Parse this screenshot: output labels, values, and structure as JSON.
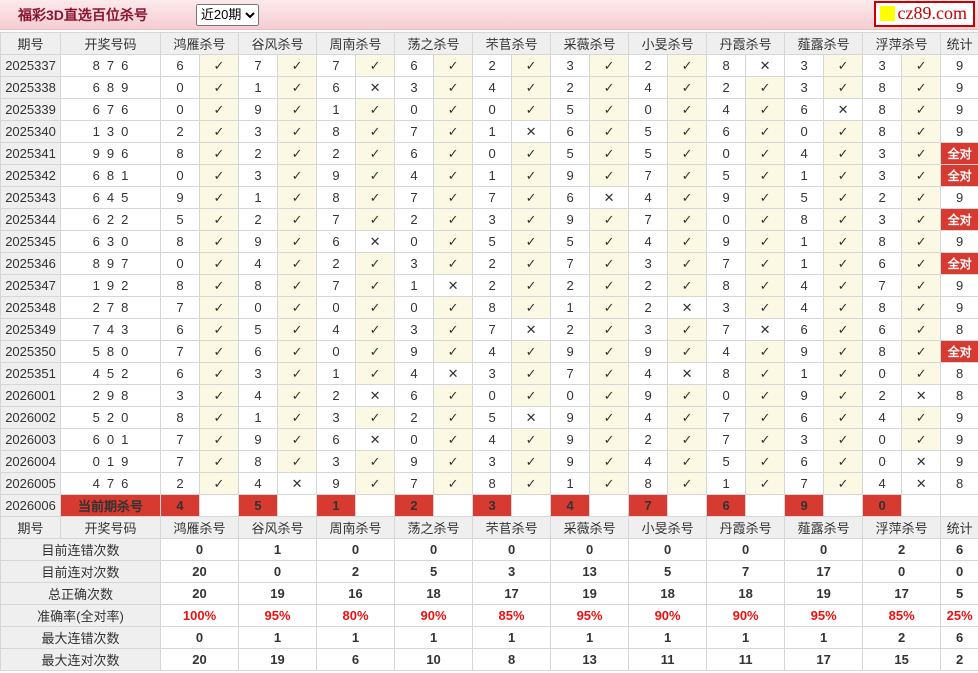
{
  "title": "福彩3D直选百位杀号",
  "range_select": {
    "value": "近20期"
  },
  "logo": {
    "text": "cz89.com"
  },
  "icons": {
    "check": "✓",
    "cross": "✕"
  },
  "colors": {
    "accent_red": "#d63a30",
    "check_red": "#cd4a42",
    "cross_gray": "#a8a8a8",
    "summary_blue": "#1414cc",
    "summary_red": "#ee1010",
    "check_cell_bg": "#fbf9e4",
    "topbar_pink": "#f4cdd2"
  },
  "table": {
    "headers": [
      "期号",
      "开奖号码",
      "鸿雁杀号",
      "谷风杀号",
      "周南杀号",
      "荡之杀号",
      "芣苢杀号",
      "采薇杀号",
      "小旻杀号",
      "丹霞杀号",
      "薤露杀号",
      "浮萍杀号",
      "统计"
    ],
    "all_correct_label": "全对",
    "rows": [
      {
        "period": "2025337",
        "draw": "876",
        "kills": [
          [
            6,
            1
          ],
          [
            7,
            1
          ],
          [
            7,
            1
          ],
          [
            6,
            1
          ],
          [
            2,
            1
          ],
          [
            3,
            1
          ],
          [
            2,
            1
          ],
          [
            8,
            0
          ],
          [
            3,
            1
          ],
          [
            3,
            1
          ]
        ],
        "stat": "9"
      },
      {
        "period": "2025338",
        "draw": "689",
        "kills": [
          [
            0,
            1
          ],
          [
            1,
            1
          ],
          [
            6,
            0
          ],
          [
            3,
            1
          ],
          [
            4,
            1
          ],
          [
            2,
            1
          ],
          [
            4,
            1
          ],
          [
            2,
            1
          ],
          [
            3,
            1
          ],
          [
            8,
            1
          ]
        ],
        "stat": "9"
      },
      {
        "period": "2025339",
        "draw": "676",
        "kills": [
          [
            0,
            1
          ],
          [
            9,
            1
          ],
          [
            1,
            1
          ],
          [
            0,
            1
          ],
          [
            0,
            1
          ],
          [
            5,
            1
          ],
          [
            0,
            1
          ],
          [
            4,
            1
          ],
          [
            6,
            0
          ],
          [
            8,
            1
          ]
        ],
        "stat": "9"
      },
      {
        "period": "2025340",
        "draw": "130",
        "kills": [
          [
            2,
            1
          ],
          [
            3,
            1
          ],
          [
            8,
            1
          ],
          [
            7,
            1
          ],
          [
            1,
            0
          ],
          [
            6,
            1
          ],
          [
            5,
            1
          ],
          [
            6,
            1
          ],
          [
            0,
            1
          ],
          [
            8,
            1
          ]
        ],
        "stat": "9"
      },
      {
        "period": "2025341",
        "draw": "996",
        "kills": [
          [
            8,
            1
          ],
          [
            2,
            1
          ],
          [
            2,
            1
          ],
          [
            6,
            1
          ],
          [
            0,
            1
          ],
          [
            5,
            1
          ],
          [
            5,
            1
          ],
          [
            0,
            1
          ],
          [
            4,
            1
          ],
          [
            3,
            1
          ]
        ],
        "stat": "全对"
      },
      {
        "period": "2025342",
        "draw": "681",
        "kills": [
          [
            0,
            1
          ],
          [
            3,
            1
          ],
          [
            9,
            1
          ],
          [
            4,
            1
          ],
          [
            1,
            1
          ],
          [
            9,
            1
          ],
          [
            7,
            1
          ],
          [
            5,
            1
          ],
          [
            1,
            1
          ],
          [
            3,
            1
          ]
        ],
        "stat": "全对"
      },
      {
        "period": "2025343",
        "draw": "645",
        "kills": [
          [
            9,
            1
          ],
          [
            1,
            1
          ],
          [
            8,
            1
          ],
          [
            7,
            1
          ],
          [
            7,
            1
          ],
          [
            6,
            0
          ],
          [
            4,
            1
          ],
          [
            9,
            1
          ],
          [
            5,
            1
          ],
          [
            2,
            1
          ]
        ],
        "stat": "9"
      },
      {
        "period": "2025344",
        "draw": "622",
        "kills": [
          [
            5,
            1
          ],
          [
            2,
            1
          ],
          [
            7,
            1
          ],
          [
            2,
            1
          ],
          [
            3,
            1
          ],
          [
            9,
            1
          ],
          [
            7,
            1
          ],
          [
            0,
            1
          ],
          [
            8,
            1
          ],
          [
            3,
            1
          ]
        ],
        "stat": "全对"
      },
      {
        "period": "2025345",
        "draw": "630",
        "kills": [
          [
            8,
            1
          ],
          [
            9,
            1
          ],
          [
            6,
            0
          ],
          [
            0,
            1
          ],
          [
            5,
            1
          ],
          [
            5,
            1
          ],
          [
            4,
            1
          ],
          [
            9,
            1
          ],
          [
            1,
            1
          ],
          [
            8,
            1
          ]
        ],
        "stat": "9"
      },
      {
        "period": "2025346",
        "draw": "897",
        "kills": [
          [
            0,
            1
          ],
          [
            4,
            1
          ],
          [
            2,
            1
          ],
          [
            3,
            1
          ],
          [
            2,
            1
          ],
          [
            7,
            1
          ],
          [
            3,
            1
          ],
          [
            7,
            1
          ],
          [
            1,
            1
          ],
          [
            6,
            1
          ]
        ],
        "stat": "全对"
      },
      {
        "period": "2025347",
        "draw": "192",
        "kills": [
          [
            8,
            1
          ],
          [
            8,
            1
          ],
          [
            7,
            1
          ],
          [
            1,
            0
          ],
          [
            2,
            1
          ],
          [
            2,
            1
          ],
          [
            2,
            1
          ],
          [
            8,
            1
          ],
          [
            4,
            1
          ],
          [
            7,
            1
          ]
        ],
        "stat": "9"
      },
      {
        "period": "2025348",
        "draw": "278",
        "kills": [
          [
            7,
            1
          ],
          [
            0,
            1
          ],
          [
            0,
            1
          ],
          [
            0,
            1
          ],
          [
            8,
            1
          ],
          [
            1,
            1
          ],
          [
            2,
            0
          ],
          [
            3,
            1
          ],
          [
            4,
            1
          ],
          [
            8,
            1
          ]
        ],
        "stat": "9"
      },
      {
        "period": "2025349",
        "draw": "743",
        "kills": [
          [
            6,
            1
          ],
          [
            5,
            1
          ],
          [
            4,
            1
          ],
          [
            3,
            1
          ],
          [
            7,
            0
          ],
          [
            2,
            1
          ],
          [
            3,
            1
          ],
          [
            7,
            0
          ],
          [
            6,
            1
          ],
          [
            6,
            1
          ]
        ],
        "stat": "8"
      },
      {
        "period": "2025350",
        "draw": "580",
        "kills": [
          [
            7,
            1
          ],
          [
            6,
            1
          ],
          [
            0,
            1
          ],
          [
            9,
            1
          ],
          [
            4,
            1
          ],
          [
            9,
            1
          ],
          [
            9,
            1
          ],
          [
            4,
            1
          ],
          [
            9,
            1
          ],
          [
            8,
            1
          ]
        ],
        "stat": "全对"
      },
      {
        "period": "2025351",
        "draw": "452",
        "kills": [
          [
            6,
            1
          ],
          [
            3,
            1
          ],
          [
            1,
            1
          ],
          [
            4,
            0
          ],
          [
            3,
            1
          ],
          [
            7,
            1
          ],
          [
            4,
            0
          ],
          [
            8,
            1
          ],
          [
            1,
            1
          ],
          [
            0,
            1
          ]
        ],
        "stat": "8"
      },
      {
        "period": "2026001",
        "draw": "298",
        "kills": [
          [
            3,
            1
          ],
          [
            4,
            1
          ],
          [
            2,
            0
          ],
          [
            6,
            1
          ],
          [
            0,
            1
          ],
          [
            0,
            1
          ],
          [
            9,
            1
          ],
          [
            0,
            1
          ],
          [
            9,
            1
          ],
          [
            2,
            0
          ]
        ],
        "stat": "8"
      },
      {
        "period": "2026002",
        "draw": "520",
        "kills": [
          [
            8,
            1
          ],
          [
            1,
            1
          ],
          [
            3,
            1
          ],
          [
            2,
            1
          ],
          [
            5,
            0
          ],
          [
            9,
            1
          ],
          [
            4,
            1
          ],
          [
            7,
            1
          ],
          [
            6,
            1
          ],
          [
            4,
            1
          ]
        ],
        "stat": "9"
      },
      {
        "period": "2026003",
        "draw": "601",
        "kills": [
          [
            7,
            1
          ],
          [
            9,
            1
          ],
          [
            6,
            0
          ],
          [
            0,
            1
          ],
          [
            4,
            1
          ],
          [
            9,
            1
          ],
          [
            2,
            1
          ],
          [
            7,
            1
          ],
          [
            3,
            1
          ],
          [
            0,
            1
          ]
        ],
        "stat": "9"
      },
      {
        "period": "2026004",
        "draw": "019",
        "kills": [
          [
            7,
            1
          ],
          [
            8,
            1
          ],
          [
            3,
            1
          ],
          [
            9,
            1
          ],
          [
            3,
            1
          ],
          [
            9,
            1
          ],
          [
            4,
            1
          ],
          [
            5,
            1
          ],
          [
            6,
            1
          ],
          [
            0,
            0
          ]
        ],
        "stat": "9"
      },
      {
        "period": "2026005",
        "draw": "476",
        "kills": [
          [
            2,
            1
          ],
          [
            4,
            0
          ],
          [
            9,
            1
          ],
          [
            7,
            1
          ],
          [
            8,
            1
          ],
          [
            1,
            1
          ],
          [
            8,
            1
          ],
          [
            1,
            1
          ],
          [
            7,
            1
          ],
          [
            4,
            0
          ]
        ],
        "stat": "8"
      }
    ],
    "current_row": {
      "period": "2026006",
      "label": "当前期杀号",
      "kills": [
        4,
        5,
        1,
        2,
        3,
        4,
        7,
        6,
        9,
        0
      ]
    }
  },
  "summary": {
    "rows": [
      {
        "label": "目前连错次数",
        "values": [
          "0",
          "1",
          "0",
          "0",
          "0",
          "0",
          "0",
          "0",
          "0",
          "2"
        ],
        "stat": "6",
        "color": "blue"
      },
      {
        "label": "目前连对次数",
        "values": [
          "20",
          "0",
          "2",
          "5",
          "3",
          "13",
          "5",
          "7",
          "17",
          "0"
        ],
        "stat": "0",
        "color": "blue"
      },
      {
        "label": "总正确次数",
        "values": [
          "20",
          "19",
          "16",
          "18",
          "17",
          "19",
          "18",
          "18",
          "19",
          "17"
        ],
        "stat": "5",
        "color": "blue"
      },
      {
        "label": "准确率(全对率)",
        "values": [
          "100%",
          "95%",
          "80%",
          "90%",
          "85%",
          "95%",
          "90%",
          "90%",
          "95%",
          "85%"
        ],
        "stat": "25%",
        "color": "red"
      },
      {
        "label": "最大连错次数",
        "values": [
          "0",
          "1",
          "1",
          "1",
          "1",
          "1",
          "1",
          "1",
          "1",
          "2"
        ],
        "stat": "6",
        "color": "blue"
      },
      {
        "label": "最大连对次数",
        "values": [
          "20",
          "19",
          "6",
          "10",
          "8",
          "13",
          "11",
          "11",
          "17",
          "15"
        ],
        "stat": "2",
        "color": "blue"
      }
    ]
  }
}
